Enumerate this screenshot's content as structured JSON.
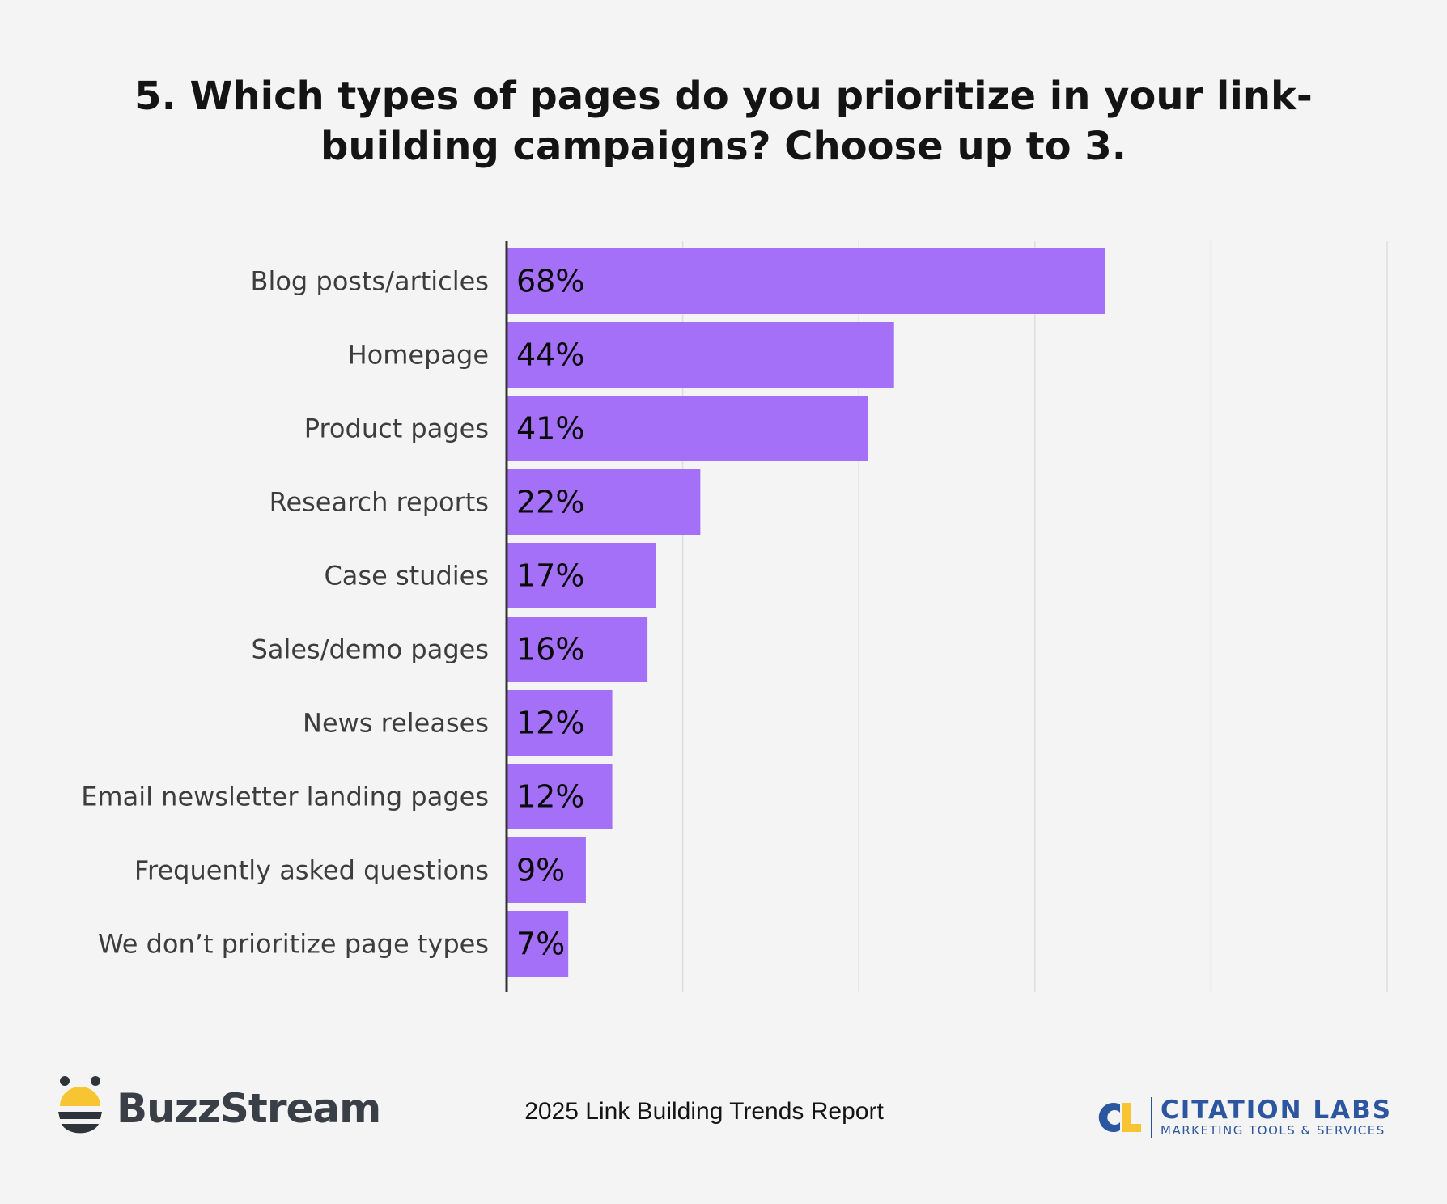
{
  "title": "5. Which types of pages do you prioritize in your link-building campaigns? Choose up to 3.",
  "footer": {
    "report": "2025 Link Building Trends Report",
    "brand_left": "BuzzStream",
    "brand_right_name": "CITATION LABS",
    "brand_right_tagline": "MARKETING TOOLS & SERVICES"
  },
  "colors": {
    "bar": "#a370f7",
    "background": "#f4f4f4",
    "gridline": "#dddddd",
    "axis": "#333333"
  },
  "chart_data": {
    "type": "bar",
    "orientation": "horizontal",
    "categories": [
      "Blog posts/articles",
      "Homepage",
      "Product pages",
      "Research reports",
      "Case studies",
      "Sales/demo pages",
      "News releases",
      "Email newsletter landing pages",
      "Frequently asked questions",
      "We don’t prioritize page types"
    ],
    "values": [
      68,
      44,
      41,
      22,
      17,
      16,
      12,
      12,
      9,
      7
    ],
    "value_labels": [
      "68%",
      "44%",
      "41%",
      "22%",
      "17%",
      "16%",
      "12%",
      "12%",
      "9%",
      "7%"
    ],
    "xlim": [
      0,
      100
    ],
    "grid": true,
    "unit": "%"
  }
}
